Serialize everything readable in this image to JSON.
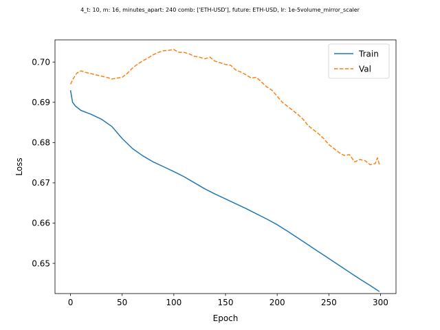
{
  "chart_data": {
    "type": "line",
    "title": "4_t: 10, m: 16, minutes_apart: 240 comb: ['ETH-USD'], future: ETH-USD, lr: 1e-5volume_mirror_scaler",
    "xlabel": "Epoch",
    "ylabel": "Loss",
    "xlim": [
      -15,
      315
    ],
    "ylim": [
      0.6425,
      0.7055
    ],
    "xticks": [
      0,
      50,
      100,
      150,
      200,
      250,
      300
    ],
    "yticks": [
      0.65,
      0.66,
      0.67,
      0.68,
      0.69,
      0.7
    ],
    "xtick_labels": [
      "0",
      "50",
      "100",
      "150",
      "200",
      "250",
      "300"
    ],
    "ytick_labels": [
      "0.65",
      "0.66",
      "0.67",
      "0.68",
      "0.69",
      "0.70"
    ],
    "grid": false,
    "legend_position": "top-right",
    "series": [
      {
        "name": "Train",
        "color": "#1f77b4",
        "style": "solid",
        "x": [
          0,
          2,
          5,
          10,
          20,
          30,
          40,
          50,
          60,
          70,
          80,
          90,
          100,
          110,
          120,
          130,
          140,
          150,
          160,
          170,
          180,
          190,
          200,
          210,
          220,
          230,
          240,
          250,
          260,
          270,
          280,
          290,
          299
        ],
        "y": [
          0.693,
          0.69,
          0.689,
          0.688,
          0.687,
          0.6858,
          0.684,
          0.681,
          0.6785,
          0.6767,
          0.6752,
          0.674,
          0.6728,
          0.6715,
          0.67,
          0.6685,
          0.6672,
          0.666,
          0.6648,
          0.6636,
          0.6623,
          0.661,
          0.6596,
          0.658,
          0.6563,
          0.6546,
          0.6529,
          0.6512,
          0.6495,
          0.6478,
          0.6461,
          0.6445,
          0.643
        ]
      },
      {
        "name": "Val",
        "color": "#ff7f0e",
        "style": "dashed",
        "x": [
          0,
          3,
          6,
          10,
          15,
          20,
          25,
          30,
          35,
          40,
          45,
          50,
          55,
          60,
          65,
          70,
          75,
          80,
          85,
          90,
          95,
          100,
          105,
          110,
          115,
          120,
          125,
          130,
          135,
          140,
          145,
          150,
          155,
          160,
          165,
          170,
          175,
          180,
          185,
          190,
          195,
          200,
          205,
          210,
          215,
          220,
          225,
          230,
          235,
          240,
          245,
          250,
          255,
          260,
          265,
          270,
          275,
          280,
          285,
          290,
          295,
          297,
          299
        ],
        "y": [
          0.6945,
          0.696,
          0.6972,
          0.6978,
          0.6974,
          0.6971,
          0.6968,
          0.6965,
          0.6962,
          0.6958,
          0.696,
          0.6962,
          0.6972,
          0.6985,
          0.6995,
          0.7003,
          0.701,
          0.7018,
          0.7024,
          0.7028,
          0.7029,
          0.7031,
          0.7024,
          0.7024,
          0.702,
          0.7014,
          0.7012,
          0.7008,
          0.7012,
          0.7002,
          0.6998,
          0.6994,
          0.6992,
          0.698,
          0.6975,
          0.6968,
          0.696,
          0.6962,
          0.695,
          0.6938,
          0.693,
          0.6915,
          0.69,
          0.689,
          0.688,
          0.687,
          0.6858,
          0.6842,
          0.6832,
          0.6822,
          0.681,
          0.6795,
          0.6785,
          0.6775,
          0.6768,
          0.677,
          0.6752,
          0.6758,
          0.6755,
          0.6745,
          0.6748,
          0.6762,
          0.6745
        ]
      }
    ]
  }
}
